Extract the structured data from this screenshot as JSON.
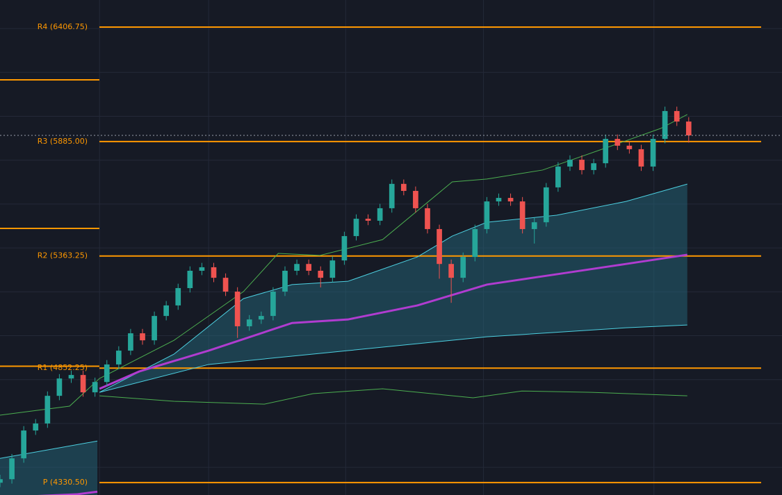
{
  "chart_data": {
    "type": "candlestick",
    "background": "#161a25",
    "grid": true,
    "grid_color": "#242938",
    "xlim": [
      0,
      64.1
    ],
    "ylim": [
      4274,
      6530
    ],
    "xgrid": [
      8.38,
      17.57,
      29.11,
      40.71,
      55.07
    ],
    "ygrid": [
      4400,
      4600,
      4800,
      5000,
      5200,
      5400,
      5600,
      5800,
      6000,
      6200,
      6400
    ],
    "up_color": "#26a69a",
    "down_color": "#ef5350",
    "level_color": "#ff9800",
    "levels": [
      {
        "label": "R4 (6406.75)",
        "value": 6406.75
      },
      {
        "label": "R3 (5885.00)",
        "value": 5885.0
      },
      {
        "label": "R2 (5363.25)",
        "value": 5363.25
      },
      {
        "label": "R1 (4852.25)",
        "value": 4852.25
      },
      {
        "label": "P (4330.50)",
        "value": 4330.5
      }
    ],
    "prev_levels": [
      6166,
      5489,
      4861
    ],
    "open": [
      4330,
      4346,
      4441,
      4568,
      4600,
      4726,
      4805,
      4821,
      4742,
      4789,
      4869,
      4932,
      5011,
      4979,
      5090,
      5138,
      5217,
      5296,
      5312,
      5264,
      5201,
      5043,
      5074,
      5090,
      5201,
      5296,
      5327,
      5296,
      5264,
      5343,
      5454,
      5533,
      5524,
      5581,
      5692,
      5660,
      5581,
      5486,
      5327,
      5264,
      5359,
      5486,
      5612,
      5628,
      5612,
      5486,
      5517,
      5676,
      5771,
      5802,
      5755,
      5786,
      5897,
      5866,
      5850,
      5771,
      5897,
      6024,
      5976
    ],
    "high": [
      4366,
      4461,
      4588,
      4620,
      4746,
      4825,
      4841,
      4841,
      4809,
      4889,
      4952,
      5031,
      5031,
      5110,
      5158,
      5237,
      5316,
      5332,
      5332,
      5284,
      5221,
      5094,
      5110,
      5221,
      5316,
      5347,
      5347,
      5316,
      5363,
      5474,
      5553,
      5553,
      5601,
      5712,
      5712,
      5680,
      5601,
      5506,
      5347,
      5379,
      5506,
      5632,
      5648,
      5648,
      5632,
      5537,
      5696,
      5791,
      5822,
      5822,
      5806,
      5917,
      5917,
      5886,
      5870,
      5917,
      6044,
      6044,
      5996
    ],
    "low": [
      4310,
      4326,
      4421,
      4548,
      4580,
      4706,
      4785,
      4722,
      4722,
      4769,
      4849,
      4912,
      4959,
      4959,
      5070,
      5118,
      5197,
      5276,
      5244,
      5181,
      4990,
      5023,
      5054,
      5070,
      5181,
      5276,
      5276,
      5220,
      5244,
      5323,
      5434,
      5504,
      5504,
      5561,
      5640,
      5561,
      5466,
      5260,
      5150,
      5244,
      5339,
      5466,
      5592,
      5592,
      5466,
      5420,
      5497,
      5656,
      5751,
      5735,
      5735,
      5766,
      5846,
      5830,
      5751,
      5751,
      5877,
      5956,
      5880
    ],
    "close": [
      4346,
      4441,
      4568,
      4600,
      4726,
      4805,
      4821,
      4742,
      4789,
      4869,
      4932,
      5011,
      4979,
      5090,
      5138,
      5217,
      5296,
      5312,
      5264,
      5201,
      5043,
      5074,
      5090,
      5201,
      5296,
      5327,
      5296,
      5264,
      5343,
      5454,
      5533,
      5524,
      5581,
      5692,
      5660,
      5581,
      5486,
      5327,
      5264,
      5359,
      5486,
      5612,
      5628,
      5612,
      5486,
      5517,
      5676,
      5771,
      5802,
      5755,
      5786,
      5897,
      5866,
      5850,
      5771,
      5897,
      6024,
      5976,
      5913
    ],
    "bands": [
      {
        "color": "#4dd0e1",
        "width": 1,
        "fill": "rgba(38,110,130,0.45)",
        "x": [
          0,
          8.2,
          null,
          8.38,
          14.65,
          20.5,
          24.6,
          29.3,
          35.15,
          38.08,
          41.0,
          46.87,
          52.72,
          57.88
        ],
        "values": [
          4441,
          4520,
          null,
          4742,
          4916,
          5169,
          5233,
          5248,
          5359,
          5454,
          5517,
          5549,
          5612,
          5691
        ]
      },
      {
        "color": "#4dd0e1",
        "width": 1,
        "x": [
          8.38,
          17.57,
          29.3,
          41.0,
          52.72,
          57.88
        ],
        "values": [
          4742,
          4869,
          4932,
          4995,
          5036,
          5049
        ]
      },
      {
        "color": "#b03cd0",
        "width": 3,
        "x": [
          0,
          6.44,
          8.2,
          null,
          8.38,
          11.72,
          17.57,
          24.6,
          29.3,
          35.15,
          41.0,
          46.87,
          52.72,
          57.88
        ],
        "values": [
          4262,
          4277,
          4289,
          null,
          4758,
          4837,
          4932,
          5058,
          5074,
          5138,
          5233,
          5280,
          5327,
          5369
        ]
      },
      {
        "color": "#4caf50",
        "width": 1,
        "x": [
          0,
          5.86,
          8.38,
          14.65,
          20.5,
          23.43,
          26.95,
          32.22,
          38.08,
          41.0,
          45.69,
          51.55,
          55.65,
          57.88
        ],
        "values": [
          4638,
          4679,
          4805,
          4979,
          5201,
          5375,
          5366,
          5438,
          5701,
          5714,
          5755,
          5866,
          5945,
          6008
        ]
      },
      {
        "color": "#4caf50",
        "width": 1,
        "x": [
          8.38,
          14.65,
          22.26,
          26.36,
          32.22,
          39.84,
          43.94,
          49.8,
          57.88
        ],
        "values": [
          4726,
          4701,
          4688,
          4736,
          4758,
          4717,
          4748,
          4742,
          4726
        ]
      }
    ]
  }
}
